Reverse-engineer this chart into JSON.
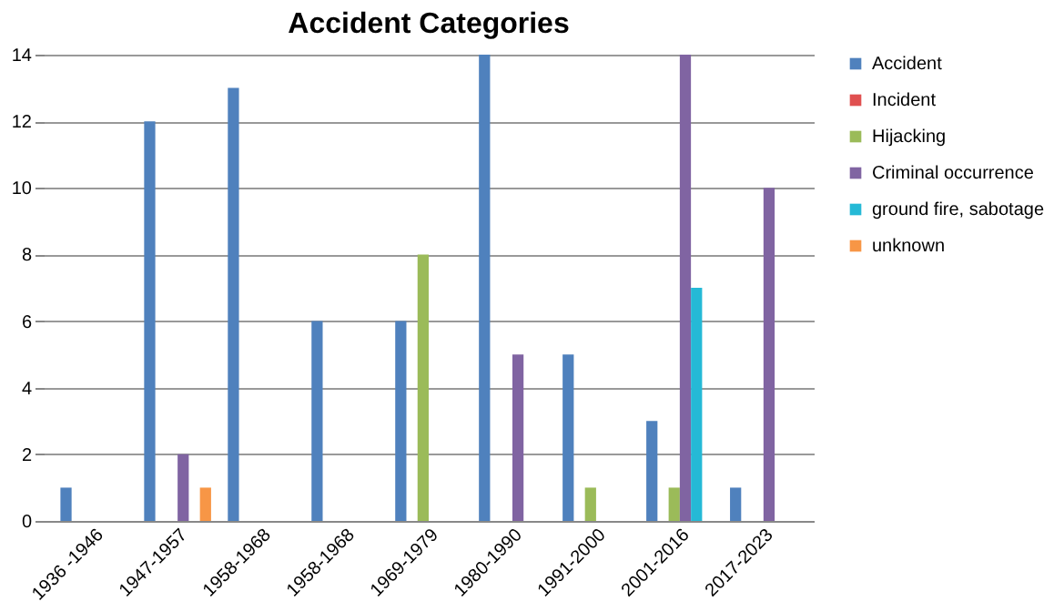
{
  "chart_data": {
    "type": "bar",
    "title": "Accident Categories",
    "categories": [
      "1936 -1946",
      "1947-1957",
      "1958-1968",
      "1958-1968",
      "1969-1979",
      "1980-1990",
      "1991-2000",
      "2001-2016",
      "2017-2023"
    ],
    "series": [
      {
        "name": "Accident",
        "color": "#4f81bd",
        "values": [
          1,
          12,
          13,
          6,
          6,
          14,
          5,
          3,
          1
        ]
      },
      {
        "name": "Incident",
        "color": "#e05050",
        "values": [
          0,
          0,
          0,
          0,
          0,
          0,
          0,
          0,
          0
        ]
      },
      {
        "name": "Hijacking",
        "color": "#9bbb59",
        "values": [
          0,
          0,
          0,
          0,
          8,
          0,
          1,
          1,
          0
        ]
      },
      {
        "name": " Criminal occurrence",
        "color": "#8064a2",
        "values": [
          0,
          2,
          0,
          0,
          0,
          5,
          0,
          14,
          10
        ]
      },
      {
        "name": "ground fire, sabotage",
        "color": "#25b9d6",
        "values": [
          0,
          0,
          0,
          0,
          0,
          0,
          0,
          7,
          0
        ]
      },
      {
        "name": "unknown",
        "color": "#f79646",
        "values": [
          0,
          1,
          0,
          0,
          0,
          0,
          0,
          0,
          0
        ]
      }
    ],
    "ylim": [
      0,
      14
    ],
    "yticks": [
      0,
      2,
      4,
      6,
      8,
      10,
      12,
      14
    ],
    "grid": "y",
    "legend": "right"
  }
}
